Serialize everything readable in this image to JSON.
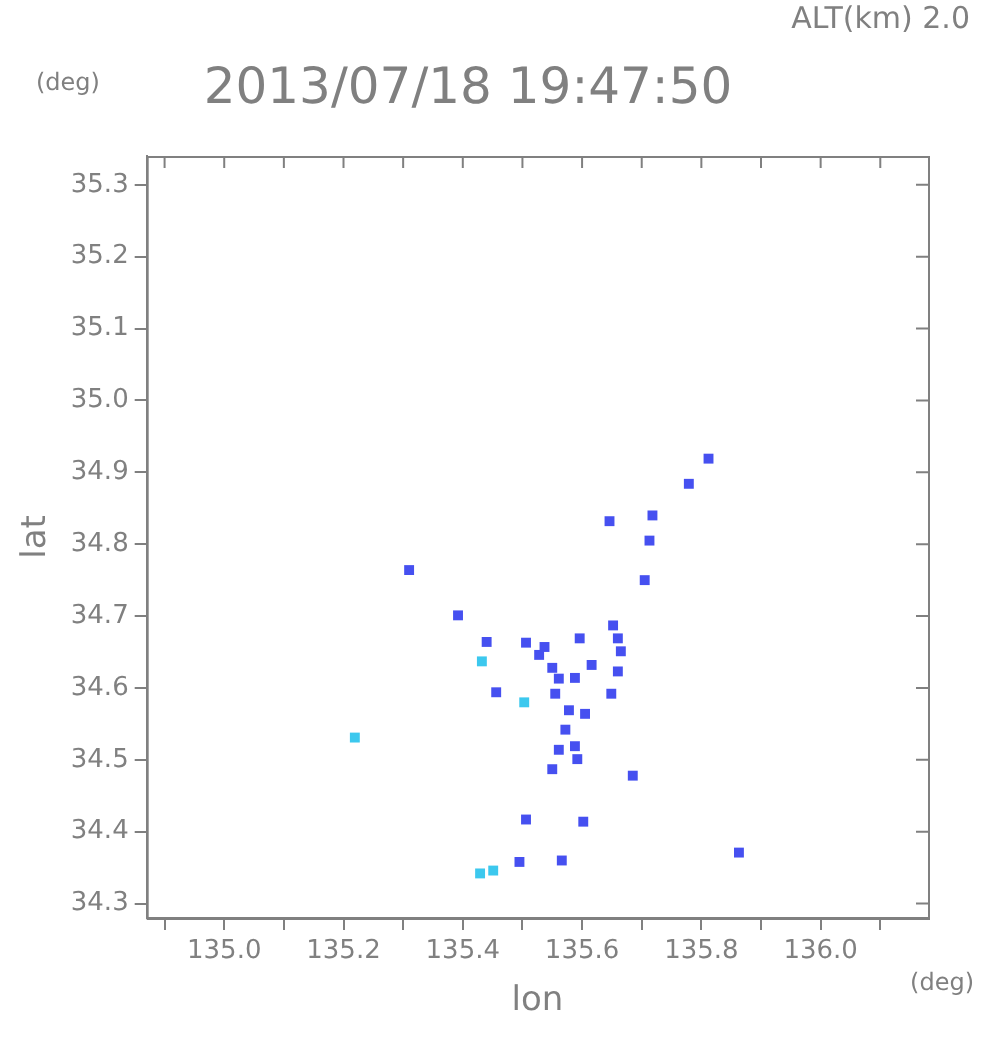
{
  "chart_data": {
    "type": "scatter",
    "title": "2013/07/18 19:47:50",
    "xlabel": "lon",
    "ylabel": "lat",
    "annotations": [
      "ALT(km) 2.0",
      "(deg)",
      "(deg)"
    ],
    "marker": "square",
    "grid": false,
    "xlim": [
      134.87,
      136.18
    ],
    "ylim": [
      34.28,
      35.34
    ],
    "xticks": [
      {
        "value": 134.9,
        "label": null
      },
      {
        "value": 135,
        "label": "135.0"
      },
      {
        "value": 135.1,
        "label": null
      },
      135.2,
      {
        "value": 135.3,
        "label": null
      },
      135.4,
      {
        "value": 135.5,
        "label": null
      },
      135.6,
      {
        "value": 135.7,
        "label": null
      },
      135.8,
      {
        "value": 135.9,
        "label": null
      },
      {
        "value": 136,
        "label": "136.0"
      },
      {
        "value": 136.1,
        "label": null
      }
    ],
    "yticks": [
      34.3,
      34.4,
      34.5,
      34.6,
      34.7,
      34.8,
      34.9,
      {
        "value": 35,
        "label": "35.0"
      },
      35.1,
      35.2,
      35.3
    ],
    "series": [
      {
        "color": "#4650f0",
        "x": [
          135.812,
          135.779,
          135.718,
          135.646,
          135.713,
          135.31,
          135.705,
          135.392,
          135.44,
          135.506,
          135.537,
          135.596,
          135.652,
          135.66,
          135.665,
          135.528,
          135.55,
          135.616,
          135.588,
          135.66,
          135.561,
          135.456,
          135.555,
          135.578,
          135.605,
          135.649,
          135.572,
          135.588,
          135.561,
          135.592,
          135.55,
          135.685,
          135.506,
          135.602,
          135.495,
          135.566,
          135.863
        ],
        "values": [
          34.919,
          34.884,
          34.84,
          34.832,
          34.805,
          34.764,
          34.75,
          34.701,
          34.664,
          34.663,
          34.657,
          34.669,
          34.687,
          34.669,
          34.651,
          34.646,
          34.628,
          34.632,
          34.614,
          34.623,
          34.613,
          34.594,
          34.592,
          34.569,
          34.564,
          34.592,
          34.542,
          34.519,
          34.514,
          34.501,
          34.487,
          34.478,
          34.417,
          34.414,
          34.358,
          34.36,
          34.371
        ]
      },
      {
        "color": "#3cc8ee",
        "x": [
          135.432,
          135.503,
          135.219,
          135.451,
          135.429
        ],
        "values": [
          34.637,
          34.58,
          34.531,
          34.346,
          34.342
        ]
      }
    ]
  }
}
